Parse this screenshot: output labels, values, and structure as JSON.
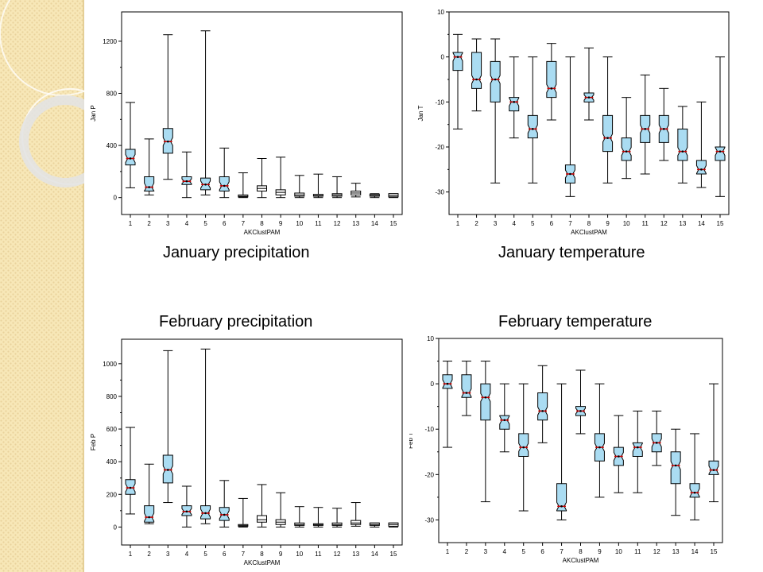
{
  "colors": {
    "box_fill": "#aadcf2",
    "median": "#cc0000",
    "stripe_background": "#f7e7b7",
    "stripe_dots": "#e9d29c"
  },
  "captions": {
    "jan_precip": "January precipitation",
    "jan_temp": "January temperature",
    "feb_precip": "February precipitation",
    "feb_temp": "February temperature"
  },
  "chart_data": [
    {
      "id": "jan_precip",
      "type": "boxplot",
      "xlabel": "AKClustPAM",
      "ylabel": "Jan P",
      "ylim": [
        -130,
        1425
      ],
      "yticks": [
        0,
        400,
        800,
        1200
      ],
      "categories": [
        "1",
        "2",
        "3",
        "4",
        "5",
        "6",
        "7",
        "8",
        "9",
        "10",
        "11",
        "12",
        "13",
        "14",
        "15"
      ],
      "boxes": [
        {
          "min": 75,
          "q1": 250,
          "median": 300,
          "q3": 370,
          "max": 730,
          "filled": true
        },
        {
          "min": 20,
          "q1": 50,
          "median": 80,
          "q3": 160,
          "max": 450,
          "filled": true
        },
        {
          "min": 140,
          "q1": 340,
          "median": 430,
          "q3": 530,
          "max": 1250,
          "filled": true
        },
        {
          "min": 0,
          "q1": 100,
          "median": 125,
          "q3": 160,
          "max": 350,
          "filled": true
        },
        {
          "min": 20,
          "q1": 60,
          "median": 100,
          "q3": 150,
          "max": 1280,
          "filled": true
        },
        {
          "min": 0,
          "q1": 50,
          "median": 90,
          "q3": 160,
          "max": 380,
          "filled": true
        },
        {
          "min": 0,
          "q1": 5,
          "median": 10,
          "q3": 20,
          "max": 190,
          "filled": false
        },
        {
          "min": 0,
          "q1": 50,
          "median": 70,
          "q3": 90,
          "max": 300,
          "filled": false
        },
        {
          "min": 0,
          "q1": 20,
          "median": 40,
          "q3": 60,
          "max": 310,
          "filled": false
        },
        {
          "min": 0,
          "q1": 10,
          "median": 20,
          "q3": 35,
          "max": 170,
          "filled": false
        },
        {
          "min": 0,
          "q1": 10,
          "median": 15,
          "q3": 25,
          "max": 180,
          "filled": false
        },
        {
          "min": 0,
          "q1": 10,
          "median": 20,
          "q3": 30,
          "max": 160,
          "filled": false
        },
        {
          "min": 5,
          "q1": 20,
          "median": 35,
          "q3": 50,
          "max": 110,
          "filled": false
        },
        {
          "min": 0,
          "q1": 10,
          "median": 15,
          "q3": 25,
          "max": 30,
          "filled": false
        },
        {
          "min": 0,
          "q1": 5,
          "median": 15,
          "q3": 30,
          "max": 30,
          "filled": false
        }
      ]
    },
    {
      "id": "jan_temp",
      "type": "boxplot",
      "xlabel": "AKClustPAM",
      "ylabel": "Jan T",
      "ylim": [
        -35,
        10
      ],
      "yticks": [
        -30,
        -20,
        -10,
        0,
        10
      ],
      "categories": [
        "1",
        "2",
        "3",
        "4",
        "5",
        "6",
        "7",
        "8",
        "9",
        "10",
        "11",
        "12",
        "13",
        "14",
        "15"
      ],
      "boxes": [
        {
          "min": -16,
          "q1": -3,
          "median": 0,
          "q3": 1,
          "max": 5,
          "filled": true
        },
        {
          "min": -12,
          "q1": -7,
          "median": -5,
          "q3": 1,
          "max": 4,
          "filled": true
        },
        {
          "min": -28,
          "q1": -10,
          "median": -5,
          "q3": -1,
          "max": 4,
          "filled": true
        },
        {
          "min": -18,
          "q1": -12,
          "median": -10,
          "q3": -9,
          "max": 0,
          "filled": true
        },
        {
          "min": -28,
          "q1": -18,
          "median": -16,
          "q3": -13,
          "max": 0,
          "filled": true
        },
        {
          "min": -14,
          "q1": -9,
          "median": -7,
          "q3": -1,
          "max": 3,
          "filled": true
        },
        {
          "min": -31,
          "q1": -28,
          "median": -26,
          "q3": -24,
          "max": 0,
          "filled": true
        },
        {
          "min": -14,
          "q1": -10,
          "median": -9,
          "q3": -8,
          "max": 2,
          "filled": true
        },
        {
          "min": -28,
          "q1": -21,
          "median": -18,
          "q3": -13,
          "max": 0,
          "filled": true
        },
        {
          "min": -27,
          "q1": -23,
          "median": -21,
          "q3": -18,
          "max": -9,
          "filled": true
        },
        {
          "min": -26,
          "q1": -19,
          "median": -16,
          "q3": -13,
          "max": -4,
          "filled": true
        },
        {
          "min": -23,
          "q1": -19,
          "median": -16,
          "q3": -13,
          "max": -7,
          "filled": true
        },
        {
          "min": -28,
          "q1": -23,
          "median": -21,
          "q3": -16,
          "max": -11,
          "filled": true
        },
        {
          "min": -29,
          "q1": -26,
          "median": -25,
          "q3": -23,
          "max": -10,
          "filled": true
        },
        {
          "min": -31,
          "q1": -23,
          "median": -21,
          "q3": -20,
          "max": 0,
          "filled": true
        }
      ]
    },
    {
      "id": "feb_precip",
      "type": "boxplot",
      "xlabel": "AKClustPAM",
      "ylabel": "Feb P",
      "ylim": [
        -110,
        1150
      ],
      "yticks": [
        0,
        200,
        400,
        600,
        800,
        1000
      ],
      "categories": [
        "1",
        "2",
        "3",
        "4",
        "5",
        "6",
        "7",
        "8",
        "9",
        "10",
        "11",
        "12",
        "13",
        "14",
        "15"
      ],
      "boxes": [
        {
          "min": 80,
          "q1": 200,
          "median": 240,
          "q3": 290,
          "max": 610,
          "filled": true
        },
        {
          "min": 20,
          "q1": 30,
          "median": 60,
          "q3": 130,
          "max": 385,
          "filled": true
        },
        {
          "min": 150,
          "q1": 270,
          "median": 350,
          "q3": 440,
          "max": 1080,
          "filled": true
        },
        {
          "min": 0,
          "q1": 70,
          "median": 95,
          "q3": 130,
          "max": 250,
          "filled": true
        },
        {
          "min": 20,
          "q1": 50,
          "median": 85,
          "q3": 130,
          "max": 1090,
          "filled": true
        },
        {
          "min": 0,
          "q1": 40,
          "median": 75,
          "q3": 120,
          "max": 285,
          "filled": true
        },
        {
          "min": 0,
          "q1": 5,
          "median": 10,
          "q3": 15,
          "max": 175,
          "filled": false
        },
        {
          "min": 0,
          "q1": 30,
          "median": 45,
          "q3": 70,
          "max": 260,
          "filled": false
        },
        {
          "min": 0,
          "q1": 15,
          "median": 30,
          "q3": 45,
          "max": 210,
          "filled": false
        },
        {
          "min": 0,
          "q1": 10,
          "median": 15,
          "q3": 25,
          "max": 125,
          "filled": false
        },
        {
          "min": 0,
          "q1": 10,
          "median": 15,
          "q3": 20,
          "max": 120,
          "filled": false
        },
        {
          "min": 0,
          "q1": 10,
          "median": 15,
          "q3": 25,
          "max": 115,
          "filled": false
        },
        {
          "min": 5,
          "q1": 15,
          "median": 25,
          "q3": 40,
          "max": 150,
          "filled": false
        },
        {
          "min": 0,
          "q1": 10,
          "median": 15,
          "q3": 25,
          "max": 25,
          "filled": false
        },
        {
          "min": 0,
          "q1": 5,
          "median": 15,
          "q3": 25,
          "max": 25,
          "filled": false
        }
      ]
    },
    {
      "id": "feb_temp",
      "type": "boxplot",
      "xlabel": "AKClustPAM",
      "ylabel": "Feb T",
      "ylim": [
        -35,
        10
      ],
      "yticks": [
        -30,
        -20,
        -10,
        0,
        10
      ],
      "categories": [
        "1",
        "2",
        "3",
        "4",
        "5",
        "6",
        "7",
        "8",
        "9",
        "10",
        "11",
        "12",
        "13",
        "14",
        "15"
      ],
      "boxes": [
        {
          "min": -14,
          "q1": -1,
          "median": 0,
          "q3": 2,
          "max": 5,
          "filled": true
        },
        {
          "min": -7,
          "q1": -3,
          "median": -2,
          "q3": 2,
          "max": 5,
          "filled": true
        },
        {
          "min": -26,
          "q1": -8,
          "median": -3,
          "q3": 0,
          "max": 5,
          "filled": true
        },
        {
          "min": -15,
          "q1": -10,
          "median": -8,
          "q3": -7,
          "max": 0,
          "filled": true
        },
        {
          "min": -28,
          "q1": -16,
          "median": -14,
          "q3": -11,
          "max": 0,
          "filled": true
        },
        {
          "min": -13,
          "q1": -8,
          "median": -6,
          "q3": -2,
          "max": 4,
          "filled": true
        },
        {
          "min": -30,
          "q1": -28,
          "median": -27,
          "q3": -22,
          "max": 0,
          "filled": true
        },
        {
          "min": -11,
          "q1": -7,
          "median": -6,
          "q3": -5,
          "max": 3,
          "filled": true
        },
        {
          "min": -25,
          "q1": -17,
          "median": -14,
          "q3": -11,
          "max": 0,
          "filled": true
        },
        {
          "min": -24,
          "q1": -18,
          "median": -16,
          "q3": -14,
          "max": -7,
          "filled": true
        },
        {
          "min": -24,
          "q1": -16,
          "median": -14,
          "q3": -13,
          "max": -6,
          "filled": true
        },
        {
          "min": -18,
          "q1": -15,
          "median": -13,
          "q3": -11,
          "max": -6,
          "filled": true
        },
        {
          "min": -29,
          "q1": -22,
          "median": -18,
          "q3": -15,
          "max": -10,
          "filled": true
        },
        {
          "min": -30,
          "q1": -25,
          "median": -24,
          "q3": -22,
          "max": -11,
          "filled": true
        },
        {
          "min": -26,
          "q1": -20,
          "median": -19,
          "q3": -17,
          "max": 0,
          "filled": true
        }
      ]
    }
  ]
}
